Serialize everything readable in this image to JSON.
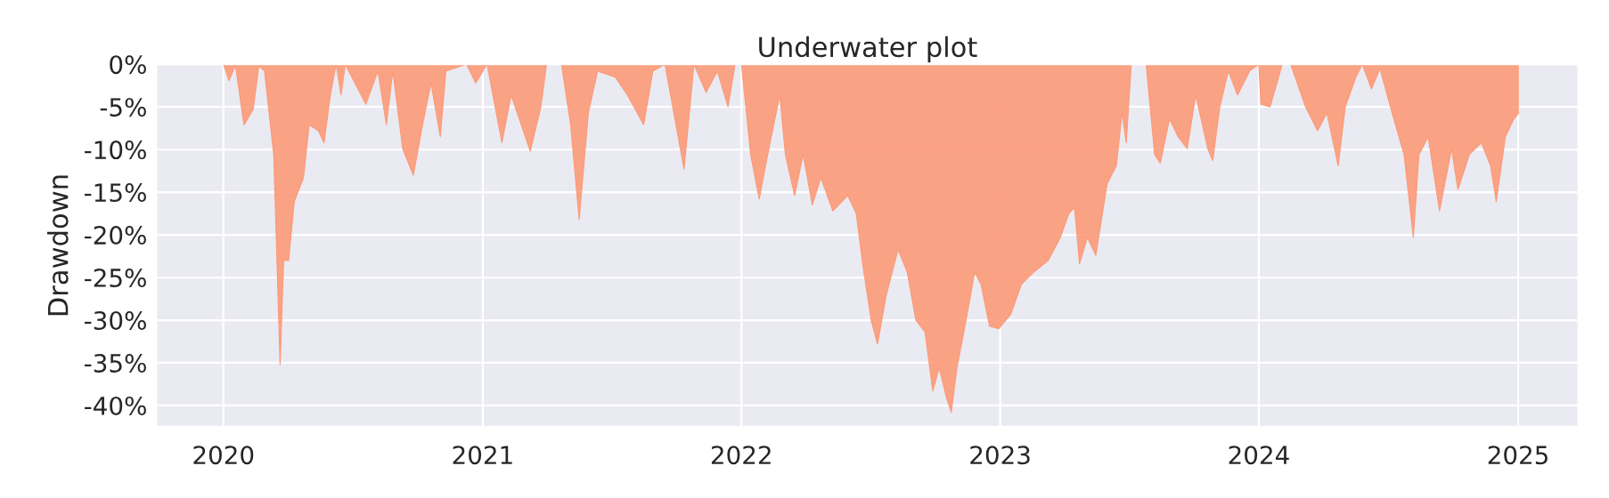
{
  "chart_data": {
    "type": "area",
    "title": "Underwater plot",
    "ylabel": "Drawdown",
    "x": [
      "2020-01-01",
      "2020-01-09",
      "2020-01-18",
      "2020-01-30",
      "2020-02-12",
      "2020-02-20",
      "2020-02-28",
      "2020-03-12",
      "2020-03-21",
      "2020-03-26",
      "2020-04-02",
      "2020-04-10",
      "2020-04-23",
      "2020-05-01",
      "2020-05-14",
      "2020-05-22",
      "2020-05-31",
      "2020-06-08",
      "2020-06-15",
      "2020-06-21",
      "2020-07-20",
      "2020-08-06",
      "2020-08-18",
      "2020-08-27",
      "2020-09-10",
      "2020-09-25",
      "2020-10-08",
      "2020-10-20",
      "2020-11-02",
      "2020-11-10",
      "2020-12-09",
      "2020-12-22",
      "2021-01-07",
      "2021-01-28",
      "2021-02-10",
      "2021-03-09",
      "2021-03-24",
      "2021-04-01",
      "2021-04-22",
      "2021-05-05",
      "2021-05-17",
      "2021-05-30",
      "2021-06-12",
      "2021-07-07",
      "2021-07-24",
      "2021-08-16",
      "2021-08-29",
      "2021-09-15",
      "2021-10-12",
      "2021-10-26",
      "2021-11-12",
      "2021-11-28",
      "2021-12-13",
      "2021-12-23",
      "2022-01-01",
      "2022-01-14",
      "2022-01-26",
      "2022-02-07",
      "2022-02-24",
      "2022-03-04",
      "2022-03-17",
      "2022-03-29",
      "2022-04-11",
      "2022-04-23",
      "2022-05-10",
      "2022-05-31",
      "2022-06-12",
      "2022-06-21",
      "2022-07-03",
      "2022-07-12",
      "2022-07-24",
      "2022-08-10",
      "2022-08-23",
      "2022-09-04",
      "2022-09-17",
      "2022-09-28",
      "2022-10-07",
      "2022-10-17",
      "2022-10-24",
      "2022-11-01",
      "2022-11-14",
      "2022-11-26",
      "2022-12-05",
      "2022-12-17",
      "2022-12-30",
      "2023-01-16",
      "2023-01-31",
      "2023-02-17",
      "2023-03-10",
      "2023-03-27",
      "2023-04-08",
      "2023-04-16",
      "2023-04-23",
      "2023-05-04",
      "2023-05-16",
      "2023-06-01",
      "2023-06-14",
      "2023-06-22",
      "2023-06-28",
      "2023-07-05",
      "2023-07-26",
      "2023-08-07",
      "2023-08-15",
      "2023-08-28",
      "2023-09-09",
      "2023-09-22",
      "2023-10-04",
      "2023-10-21",
      "2023-10-28",
      "2023-11-07",
      "2023-11-19",
      "2023-12-02",
      "2023-12-19",
      "2024-01-01",
      "2024-01-04",
      "2024-01-17",
      "2024-02-03",
      "2024-02-15",
      "2024-03-07",
      "2024-03-24",
      "2024-04-06",
      "2024-04-22",
      "2024-05-02",
      "2024-05-17",
      "2024-05-26",
      "2024-06-08",
      "2024-06-20",
      "2024-07-07",
      "2024-07-24",
      "2024-08-06",
      "2024-08-14",
      "2024-08-27",
      "2024-09-12",
      "2024-09-29",
      "2024-10-08",
      "2024-10-24",
      "2024-11-10",
      "2024-11-23",
      "2024-12-01",
      "2024-12-14",
      "2024-12-26",
      "2025-01-02"
    ],
    "series": [
      {
        "color": "#fc9a78",
        "values": [
          0,
          -1.9,
          -0.1,
          -7.1,
          -5.3,
          -0.2,
          -0.8,
          -10.6,
          -35.2,
          -23,
          -23,
          -16.1,
          -13.3,
          -7.1,
          -7.8,
          -9.2,
          -3.6,
          0,
          -3.6,
          0,
          -4.7,
          -0.8,
          -7.1,
          -0.8,
          -9.9,
          -13,
          -7.1,
          -2.2,
          -8.5,
          -0.8,
          0,
          -2.2,
          0,
          -9.2,
          -3.6,
          -10.2,
          -5,
          0,
          0,
          -7.1,
          -18.2,
          -5.7,
          -0.8,
          -1.5,
          -3.6,
          -7.1,
          -0.8,
          0,
          -12.3,
          0,
          -3.3,
          -0.8,
          -5,
          0,
          0,
          -10.6,
          -15.8,
          -10.6,
          -3.6,
          -10.6,
          -15.4,
          -10.6,
          -16.5,
          -13.3,
          -17.2,
          -15.4,
          -17.5,
          -23.4,
          -30,
          -32.8,
          -27.2,
          -21.7,
          -24.4,
          -30,
          -31.4,
          -38.3,
          -35.6,
          -39,
          -40.8,
          -35.6,
          -30,
          -24.4,
          -25.8,
          -30.7,
          -31,
          -29.3,
          -25.8,
          -24.4,
          -23,
          -20.3,
          -17.5,
          -16.8,
          -23.4,
          -20.3,
          -22.4,
          -14,
          -11.9,
          -5.7,
          -9.2,
          0,
          0,
          -10.6,
          -11.6,
          -6.4,
          -8.5,
          -9.9,
          -3.6,
          -9.9,
          -11.3,
          -5,
          -0.8,
          -3.6,
          -0.8,
          0,
          -4.7,
          -5,
          0,
          0,
          -5,
          -7.8,
          -5.7,
          -11.9,
          -5,
          -1.5,
          0,
          -2.9,
          -0.5,
          -5.7,
          -10.6,
          -20.3,
          -10.6,
          -8.5,
          -17.2,
          -9.9,
          -14.7,
          -10.6,
          -9.2,
          -11.9,
          -16.1,
          -8.5,
          -6.4,
          -5.7
        ]
      }
    ],
    "xlim": [
      "2019-09-28",
      "2025-03-27"
    ],
    "xticks": [
      "2020",
      "2021",
      "2022",
      "2023",
      "2024",
      "2025"
    ],
    "ylim": [
      -42.5,
      0
    ],
    "yticks": [
      {
        "value": 0,
        "label": "0%"
      },
      {
        "value": -5,
        "label": "-5%"
      },
      {
        "value": -10,
        "label": "-10%"
      },
      {
        "value": -15,
        "label": "-15%"
      },
      {
        "value": -20,
        "label": "-20%"
      },
      {
        "value": -25,
        "label": "-25%"
      },
      {
        "value": -30,
        "label": "-30%"
      },
      {
        "value": -35,
        "label": "-35%"
      },
      {
        "value": -40,
        "label": "-40%"
      }
    ],
    "grid": true
  }
}
